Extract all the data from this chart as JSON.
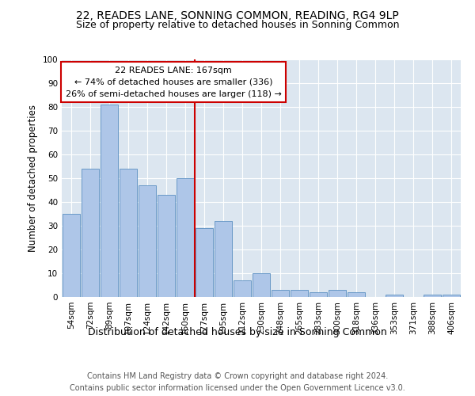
{
  "title1": "22, READES LANE, SONNING COMMON, READING, RG4 9LP",
  "title2": "Size of property relative to detached houses in Sonning Common",
  "xlabel": "Distribution of detached houses by size in Sonning Common",
  "ylabel": "Number of detached properties",
  "categories": [
    "54sqm",
    "72sqm",
    "89sqm",
    "107sqm",
    "124sqm",
    "142sqm",
    "160sqm",
    "177sqm",
    "195sqm",
    "212sqm",
    "230sqm",
    "248sqm",
    "265sqm",
    "283sqm",
    "300sqm",
    "318sqm",
    "336sqm",
    "353sqm",
    "371sqm",
    "388sqm",
    "406sqm"
  ],
  "values": [
    35,
    54,
    81,
    54,
    47,
    43,
    50,
    29,
    32,
    7,
    10,
    3,
    3,
    2,
    3,
    2,
    0,
    1,
    0,
    1,
    1
  ],
  "bar_color": "#aec6e8",
  "bar_edge_color": "#5a8fc2",
  "vline_color": "#cc0000",
  "vline_x": 6.5,
  "annotation_text": "22 READES LANE: 167sqm\n← 74% of detached houses are smaller (336)\n26% of semi-detached houses are larger (118) →",
  "annotation_box_color": "#ffffff",
  "annotation_box_edge_color": "#cc0000",
  "ylim": [
    0,
    100
  ],
  "yticks": [
    0,
    10,
    20,
    30,
    40,
    50,
    60,
    70,
    80,
    90,
    100
  ],
  "plot_bg_color": "#dce6f0",
  "footer": "Contains HM Land Registry data © Crown copyright and database right 2024.\nContains public sector information licensed under the Open Government Licence v3.0.",
  "title1_fontsize": 10,
  "title2_fontsize": 9,
  "xlabel_fontsize": 9,
  "ylabel_fontsize": 8.5,
  "tick_fontsize": 7.5,
  "annotation_fontsize": 8,
  "footer_fontsize": 7
}
